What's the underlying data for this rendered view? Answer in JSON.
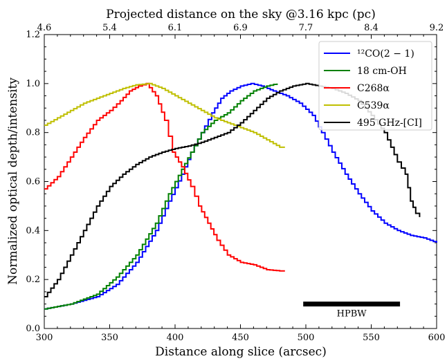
{
  "chart_data": {
    "type": "line",
    "xlabel": "Distance along slice (arcsec)",
    "ylabel": "Normalized optical depth/intensity",
    "top_xlabel": "Projected distance on the sky @3.16 kpc (pc)",
    "xlim": [
      300,
      600
    ],
    "ylim": [
      0.0,
      1.2
    ],
    "x_ticks": [
      "300",
      "350",
      "400",
      "450",
      "500",
      "550",
      "600"
    ],
    "y_ticks": [
      "0.0",
      "0.2",
      "0.4",
      "0.6",
      "0.8",
      "1.0",
      "1.2"
    ],
    "top_ticks": [
      "4.6",
      "5.4",
      "6.1",
      "6.9",
      "7.7",
      "8.4",
      "9.2"
    ],
    "legend_position": "upper-right",
    "grid": false,
    "series": [
      {
        "name": "¹²CO(2 − 1)",
        "color": "#0000ff",
        "points": [
          [
            300,
            0.08
          ],
          [
            320,
            0.1
          ],
          [
            340,
            0.13
          ],
          [
            355,
            0.18
          ],
          [
            370,
            0.27
          ],
          [
            385,
            0.4
          ],
          [
            395,
            0.52
          ],
          [
            405,
            0.63
          ],
          [
            412,
            0.72
          ],
          [
            420,
            0.8
          ],
          [
            428,
            0.88
          ],
          [
            435,
            0.94
          ],
          [
            442,
            0.97
          ],
          [
            450,
            0.99
          ],
          [
            458,
            1.0
          ],
          [
            466,
            0.99
          ],
          [
            475,
            0.97
          ],
          [
            485,
            0.95
          ],
          [
            495,
            0.92
          ],
          [
            505,
            0.87
          ],
          [
            512,
            0.8
          ],
          [
            520,
            0.72
          ],
          [
            530,
            0.63
          ],
          [
            540,
            0.55
          ],
          [
            550,
            0.48
          ],
          [
            560,
            0.43
          ],
          [
            570,
            0.4
          ],
          [
            580,
            0.38
          ],
          [
            590,
            0.37
          ],
          [
            600,
            0.35
          ]
        ]
      },
      {
        "name": "18 cm-OH",
        "color": "#008000",
        "points": [
          [
            300,
            0.08
          ],
          [
            320,
            0.1
          ],
          [
            340,
            0.14
          ],
          [
            355,
            0.21
          ],
          [
            370,
            0.3
          ],
          [
            385,
            0.43
          ],
          [
            395,
            0.55
          ],
          [
            405,
            0.65
          ],
          [
            412,
            0.72
          ],
          [
            420,
            0.8
          ],
          [
            430,
            0.85
          ],
          [
            440,
            0.88
          ],
          [
            450,
            0.93
          ],
          [
            460,
            0.97
          ],
          [
            470,
            0.99
          ],
          [
            478,
            1.0
          ]
        ]
      },
      {
        "name": "C268α",
        "color": "#ff0000",
        "points": [
          [
            300,
            0.57
          ],
          [
            310,
            0.62
          ],
          [
            320,
            0.7
          ],
          [
            330,
            0.78
          ],
          [
            340,
            0.85
          ],
          [
            350,
            0.89
          ],
          [
            358,
            0.93
          ],
          [
            365,
            0.97
          ],
          [
            372,
            0.99
          ],
          [
            378,
            1.0
          ],
          [
            385,
            0.95
          ],
          [
            392,
            0.85
          ],
          [
            398,
            0.72
          ],
          [
            405,
            0.66
          ],
          [
            412,
            0.58
          ],
          [
            418,
            0.5
          ],
          [
            425,
            0.43
          ],
          [
            432,
            0.36
          ],
          [
            440,
            0.3
          ],
          [
            450,
            0.27
          ],
          [
            460,
            0.26
          ],
          [
            470,
            0.24
          ],
          [
            480,
            0.235
          ],
          [
            484,
            0.235
          ]
        ]
      },
      {
        "name": "C539α",
        "color": "#bfbf00",
        "points": [
          [
            300,
            0.83
          ],
          [
            310,
            0.86
          ],
          [
            320,
            0.89
          ],
          [
            330,
            0.92
          ],
          [
            340,
            0.94
          ],
          [
            350,
            0.96
          ],
          [
            360,
            0.98
          ],
          [
            370,
            0.995
          ],
          [
            380,
            1.0
          ],
          [
            390,
            0.98
          ],
          [
            400,
            0.95
          ],
          [
            410,
            0.92
          ],
          [
            420,
            0.89
          ],
          [
            430,
            0.86
          ],
          [
            440,
            0.84
          ],
          [
            450,
            0.82
          ],
          [
            460,
            0.8
          ],
          [
            470,
            0.77
          ],
          [
            480,
            0.74
          ],
          [
            484,
            0.74
          ]
        ]
      },
      {
        "name": "495 GHz-[CI]",
        "color": "#000000",
        "points": [
          [
            300,
            0.13
          ],
          [
            310,
            0.2
          ],
          [
            320,
            0.3
          ],
          [
            330,
            0.4
          ],
          [
            340,
            0.5
          ],
          [
            350,
            0.58
          ],
          [
            360,
            0.63
          ],
          [
            370,
            0.67
          ],
          [
            380,
            0.7
          ],
          [
            390,
            0.72
          ],
          [
            400,
            0.735
          ],
          [
            410,
            0.745
          ],
          [
            420,
            0.76
          ],
          [
            430,
            0.78
          ],
          [
            440,
            0.8
          ],
          [
            450,
            0.84
          ],
          [
            460,
            0.89
          ],
          [
            470,
            0.94
          ],
          [
            480,
            0.97
          ],
          [
            490,
            0.99
          ],
          [
            500,
            1.0
          ],
          [
            510,
            0.99
          ],
          [
            520,
            0.98
          ],
          [
            530,
            0.96
          ],
          [
            540,
            0.93
          ],
          [
            550,
            0.87
          ],
          [
            560,
            0.8
          ],
          [
            570,
            0.68
          ],
          [
            576,
            0.63
          ],
          [
            580,
            0.52
          ],
          [
            584,
            0.47
          ],
          [
            587,
            0.455
          ]
        ]
      }
    ],
    "annotation": {
      "label": "HPBW",
      "x_start": 498,
      "x_end": 572,
      "y": 0.1
    }
  }
}
